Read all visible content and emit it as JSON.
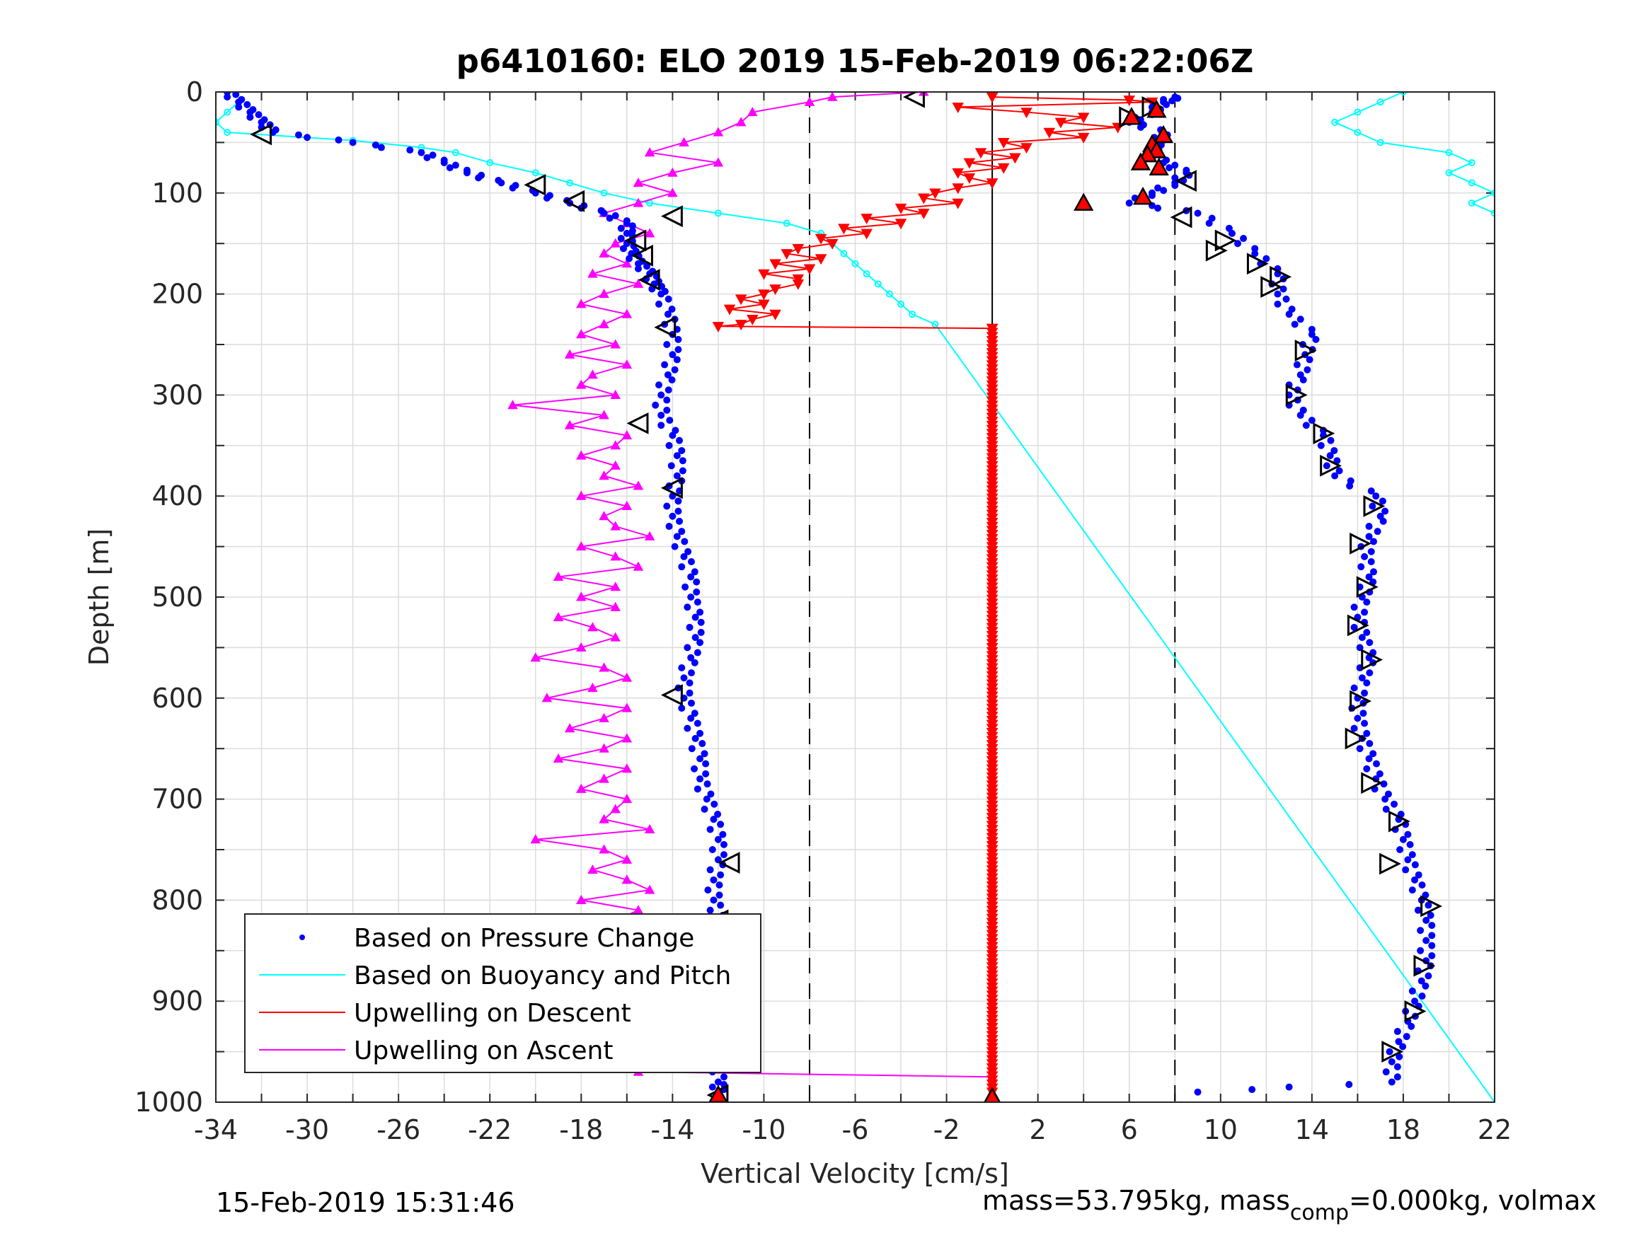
{
  "chart_data": {
    "type": "scatter",
    "title": "p6410160: ELO 2019 15-Feb-2019 06:22:06Z",
    "xlabel": "Vertical Velocity [cm/s]",
    "ylabel": "Depth [m]",
    "xlim": [
      -34,
      22
    ],
    "ylim": [
      0,
      1000
    ],
    "y_reversed": true,
    "x_ticks": [
      -34,
      -30,
      -26,
      -22,
      -18,
      -14,
      -10,
      -6,
      -2,
      2,
      6,
      10,
      14,
      18,
      22
    ],
    "y_ticks": [
      0,
      100,
      200,
      300,
      400,
      500,
      600,
      700,
      800,
      900,
      1000
    ],
    "grid": true,
    "legend_position": "bottom-left",
    "reference_lines": {
      "solid_x": 0,
      "dashed_x": [
        -8,
        8
      ]
    },
    "series": [
      {
        "name": "Based on Pressure Change",
        "marker": "dot",
        "color": "#0000ff",
        "dive": {
          "depth": [
            0,
            10,
            20,
            30,
            40,
            50,
            60,
            70,
            80,
            90,
            100,
            110,
            120,
            130,
            140,
            150,
            160,
            170,
            180,
            190,
            200,
            220,
            240,
            260,
            280,
            300,
            320,
            340,
            360,
            380,
            400,
            420,
            440,
            460,
            480,
            500,
            520,
            540,
            560,
            580,
            600,
            620,
            640,
            660,
            680,
            700,
            720,
            740,
            760,
            780,
            800,
            820,
            840,
            860,
            880,
            900,
            920,
            940,
            960,
            980,
            990
          ],
          "velocity": [
            -33.5,
            -33,
            -32.5,
            -32,
            -31.5,
            -28,
            -25,
            -24,
            -23,
            -21.5,
            -20,
            -18.5,
            -17,
            -16,
            -16,
            -16,
            -15.8,
            -15.5,
            -15,
            -14.8,
            -14.5,
            -14.2,
            -14,
            -14,
            -14.2,
            -14.5,
            -14.5,
            -14,
            -13.8,
            -13.8,
            -14,
            -14,
            -13.8,
            -13.5,
            -13.2,
            -13.2,
            -13,
            -13,
            -13.2,
            -13.5,
            -13.5,
            -13.2,
            -13,
            -12.8,
            -12.8,
            -12.5,
            -12.2,
            -12,
            -12,
            -12.2,
            -12.2,
            -12,
            -12,
            -12,
            -12,
            -12,
            -12,
            -12,
            -12,
            -12,
            -12
          ]
        },
        "climb": {
          "depth": [
            990,
            980,
            960,
            940,
            920,
            900,
            880,
            860,
            840,
            820,
            800,
            780,
            760,
            740,
            720,
            700,
            680,
            660,
            640,
            620,
            600,
            580,
            560,
            540,
            520,
            500,
            480,
            460,
            440,
            420,
            400,
            380,
            360,
            340,
            320,
            300,
            280,
            260,
            240,
            220,
            200,
            180,
            160,
            140,
            120,
            110,
            100,
            90,
            80,
            70,
            60,
            50,
            40,
            30,
            20,
            10,
            5
          ],
          "velocity": [
            9,
            17.5,
            17.5,
            17.8,
            18.2,
            18.5,
            18.8,
            19,
            19,
            19,
            18.8,
            18.5,
            18.2,
            18,
            17.8,
            17.2,
            16.8,
            16.5,
            16.2,
            16,
            16,
            16.2,
            16.5,
            16.2,
            16,
            16.2,
            16.5,
            16.3,
            16.5,
            17,
            16.8,
            15,
            14.8,
            14.5,
            13.5,
            13,
            13.5,
            13.7,
            14,
            13,
            12.5,
            12.5,
            11.5,
            10.5,
            9,
            6,
            7,
            8,
            8.5,
            7.5,
            7,
            7.2,
            7.5,
            6,
            7,
            7.5,
            8
          ]
        }
      },
      {
        "name": "Based on Buoyancy and Pitch",
        "marker": "line",
        "color": "#00ffff",
        "dive": {
          "depth": [
            10,
            20,
            30,
            40,
            48,
            55,
            60,
            70,
            80,
            90,
            100,
            110,
            120,
            130,
            140,
            150,
            160,
            170,
            180,
            190,
            200,
            210,
            220,
            230,
            1000
          ],
          "velocity": [
            -33,
            -33.5,
            -34,
            -33.5,
            -28,
            -25,
            -23.5,
            -22,
            -20,
            -18.5,
            -17,
            -15,
            -12,
            -9,
            -7.5,
            -7,
            -6.5,
            -6,
            -5.5,
            -5,
            -4.5,
            -4,
            -3.5,
            -2.5,
            22
          ]
        },
        "climb": {
          "depth": [
            0,
            10,
            20,
            30,
            40,
            50,
            60,
            70,
            80,
            90,
            100,
            110,
            120
          ],
          "velocity": [
            18,
            17,
            16,
            15,
            16,
            17,
            20,
            21,
            20,
            21,
            22,
            21,
            22
          ]
        }
      },
      {
        "name": "Upwelling on Descent",
        "marker": "down-triangle",
        "color": "#ff0000",
        "dive": {
          "depth": [
            5,
            8,
            10,
            15,
            20,
            25,
            30,
            35,
            40,
            45,
            50,
            55,
            60,
            65,
            70,
            75,
            80,
            85,
            90,
            95,
            100,
            105,
            110,
            115,
            120,
            125,
            130,
            135,
            140,
            145,
            150,
            155,
            160,
            165,
            170,
            175,
            180,
            185,
            190,
            195,
            200,
            205,
            210,
            215,
            220,
            225,
            230,
            232,
            234,
            300,
            400,
            500,
            600,
            700,
            800,
            900,
            975,
            990
          ],
          "velocity": [
            0,
            6,
            7,
            -1.5,
            1.5,
            4,
            3,
            5.5,
            2.5,
            4,
            0.5,
            1.5,
            -0.5,
            1,
            -1,
            0.5,
            -1.5,
            -1,
            0,
            -1.5,
            -2.5,
            -3,
            -1.5,
            -4,
            -3,
            -5.5,
            -4,
            -6.5,
            -5.5,
            -7.5,
            -7,
            -8.5,
            -9,
            -7.5,
            -9.5,
            -8,
            -10,
            -8.5,
            -8.5,
            -9.5,
            -10,
            -11,
            -10,
            -11.5,
            -9.5,
            -10.5,
            -11,
            -12,
            0,
            0,
            0,
            0,
            0,
            0,
            0,
            0,
            0,
            0
          ]
        }
      },
      {
        "name": "Upwelling on Ascent",
        "marker": "up-triangle",
        "color": "#ff00ff",
        "climb": {
          "depth": [
            975,
            970,
            960,
            950,
            940,
            930,
            920,
            910,
            900,
            890,
            880,
            870,
            860,
            850,
            840,
            830,
            820,
            810,
            800,
            790,
            780,
            770,
            760,
            750,
            740,
            730,
            720,
            710,
            700,
            690,
            680,
            670,
            660,
            650,
            640,
            630,
            620,
            610,
            600,
            590,
            580,
            570,
            560,
            550,
            540,
            530,
            520,
            510,
            500,
            490,
            480,
            470,
            460,
            450,
            440,
            430,
            420,
            410,
            400,
            390,
            380,
            370,
            360,
            350,
            340,
            330,
            320,
            310,
            300,
            290,
            280,
            270,
            260,
            250,
            240,
            230,
            220,
            210,
            200,
            190,
            180,
            170,
            160,
            150,
            140,
            130,
            120,
            110,
            100,
            90,
            80,
            70,
            60,
            50,
            40,
            30,
            20,
            10,
            5,
            0
          ],
          "velocity": [
            0,
            -15.5,
            -16,
            -15,
            -17,
            -15,
            -16,
            -14.5,
            -20,
            -15,
            -15.5,
            -13,
            -18,
            -16,
            -15,
            -14.5,
            -16.5,
            -15.5,
            -18,
            -15,
            -16,
            -17.5,
            -16,
            -17,
            -20,
            -15,
            -17,
            -16.5,
            -16,
            -18,
            -17,
            -16,
            -19,
            -17,
            -16,
            -18.5,
            -17,
            -16,
            -19.5,
            -17.5,
            -16,
            -17,
            -20,
            -18,
            -16.5,
            -17.5,
            -19,
            -16.5,
            -18,
            -16.5,
            -19,
            -15.5,
            -16.5,
            -18,
            -15,
            -16.5,
            -17,
            -16,
            -18,
            -15.5,
            -17,
            -16.5,
            -18,
            -16.5,
            -16,
            -18.5,
            -17,
            -21,
            -16.5,
            -18,
            -17.5,
            -16,
            -18.5,
            -16.5,
            -18,
            -17,
            -16,
            -18,
            -17,
            -15.5,
            -17.5,
            -16,
            -17,
            -16.5,
            -15,
            -16,
            -17,
            -15.5,
            -14,
            -15.5,
            -14,
            -12,
            -15,
            -13.5,
            -12,
            -11,
            -10.5,
            -8,
            -7,
            -3
          ]
        }
      }
    ],
    "arrow_markers": {
      "left_pointing": [
        {
          "velocity": -3.4,
          "depth": 5
        },
        {
          "velocity": -32,
          "depth": 42
        },
        {
          "velocity": -20,
          "depth": 92
        },
        {
          "velocity": -18.3,
          "depth": 108
        },
        {
          "velocity": -14,
          "depth": 123
        },
        {
          "velocity": -15.6,
          "depth": 147
        },
        {
          "velocity": -15.3,
          "depth": 162
        },
        {
          "velocity": -15,
          "depth": 186
        },
        {
          "velocity": -14.3,
          "depth": 233
        },
        {
          "velocity": -15.5,
          "depth": 328
        },
        {
          "velocity": -14,
          "depth": 392
        },
        {
          "velocity": -14,
          "depth": 597
        },
        {
          "velocity": -11.5,
          "depth": 763
        },
        {
          "velocity": -12,
          "depth": 820
        },
        {
          "velocity": -12,
          "depth": 918
        },
        {
          "velocity": -12,
          "depth": 993
        },
        {
          "velocity": 8.5,
          "depth": 88
        },
        {
          "velocity": 8.3,
          "depth": 124
        }
      ],
      "right_pointing": [
        {
          "velocity": 6,
          "depth": 25
        },
        {
          "velocity": 7,
          "depth": 15
        },
        {
          "velocity": 9.8,
          "depth": 157
        },
        {
          "velocity": 10.2,
          "depth": 147
        },
        {
          "velocity": 11.6,
          "depth": 170
        },
        {
          "velocity": 12.6,
          "depth": 183
        },
        {
          "velocity": 12.2,
          "depth": 193
        },
        {
          "velocity": 13.7,
          "depth": 256
        },
        {
          "velocity": 13.3,
          "depth": 300
        },
        {
          "velocity": 14.5,
          "depth": 338
        },
        {
          "velocity": 14.8,
          "depth": 370
        },
        {
          "velocity": 16.7,
          "depth": 410
        },
        {
          "velocity": 16.1,
          "depth": 447
        },
        {
          "velocity": 16.4,
          "depth": 490
        },
        {
          "velocity": 16,
          "depth": 528
        },
        {
          "velocity": 16.6,
          "depth": 562
        },
        {
          "velocity": 16.1,
          "depth": 603
        },
        {
          "velocity": 15.9,
          "depth": 640
        },
        {
          "velocity": 16.6,
          "depth": 684
        },
        {
          "velocity": 17.8,
          "depth": 722
        },
        {
          "velocity": 17.4,
          "depth": 764
        },
        {
          "velocity": 19.2,
          "depth": 806
        },
        {
          "velocity": 18.9,
          "depth": 865
        },
        {
          "velocity": 18.5,
          "depth": 910
        },
        {
          "velocity": 17.5,
          "depth": 950
        }
      ],
      "red_up_triangles": [
        {
          "velocity": 7.2,
          "depth": 18
        },
        {
          "velocity": 6.1,
          "depth": 25
        },
        {
          "velocity": 7.5,
          "depth": 43
        },
        {
          "velocity": 7,
          "depth": 52
        },
        {
          "velocity": 7.2,
          "depth": 58
        },
        {
          "velocity": 6.8,
          "depth": 62
        },
        {
          "velocity": 6.5,
          "depth": 70
        },
        {
          "velocity": 7.3,
          "depth": 75
        },
        {
          "velocity": 6.6,
          "depth": 104
        },
        {
          "velocity": 4,
          "depth": 110
        },
        {
          "velocity": -12,
          "depth": 993
        },
        {
          "velocity": 0,
          "depth": 995
        }
      ]
    }
  },
  "legend": {
    "entries": [
      "Based on Pressure Change",
      "Based on Buoyancy and Pitch",
      "Upwelling on Descent",
      "Upwelling on Ascent"
    ]
  },
  "footer": {
    "timestamp": "15-Feb-2019 15:31:46",
    "mass_prefix": "mass=53.795kg, mass",
    "mass_sub": "comp",
    "mass_suffix": "=0.000kg, volmax"
  }
}
